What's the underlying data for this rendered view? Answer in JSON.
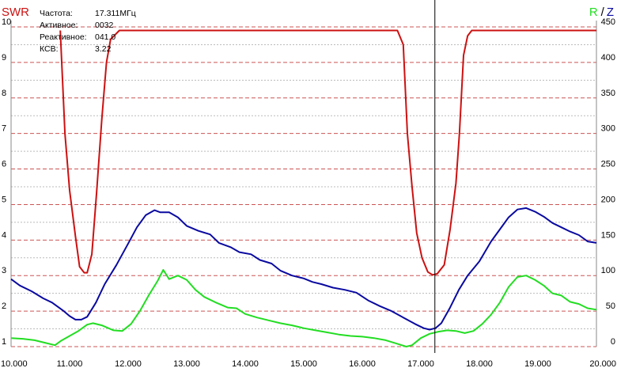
{
  "chart_data": {
    "type": "line",
    "title_left": "SWR",
    "title_right": {
      "r": "R",
      "slash": "/",
      "z": "Z"
    },
    "xlim": [
      10.0,
      20.0
    ],
    "x_ticks": [
      "10.000",
      "11.000",
      "12.000",
      "13.000",
      "14.000",
      "15.000",
      "16.000",
      "17.000",
      "18.000",
      "19.000",
      "20.000"
    ],
    "y_left": {
      "lim": [
        1,
        10
      ],
      "ticks": [
        "1",
        "2",
        "3",
        "4",
        "5",
        "6",
        "7",
        "8",
        "9",
        "10"
      ]
    },
    "y_right": {
      "lim": [
        0,
        450
      ],
      "ticks": [
        "0",
        "50",
        "100",
        "150",
        "200",
        "250",
        "300",
        "350",
        "400",
        "450"
      ]
    },
    "cursor_x": 17.24,
    "info": [
      {
        "label": "Частота:",
        "value": "17.311МГц"
      },
      {
        "label": "Активное:",
        "value": "0032"
      },
      {
        "label": "Реактивное:",
        "value": "041.0"
      },
      {
        "label": "КСВ:",
        "value": "3.22"
      }
    ],
    "colors": {
      "swr": "#cc1111",
      "z": "#0a0aa0",
      "r": "#22dd22",
      "grid": "#cc5555",
      "grid_minor": "#bbbbbb"
    },
    "series": [
      {
        "key": "swr",
        "axis": "left",
        "points": [
          [
            10.84,
            9.9
          ],
          [
            10.92,
            7.0
          ],
          [
            11.0,
            5.4
          ],
          [
            11.1,
            4.1
          ],
          [
            11.17,
            3.25
          ],
          [
            11.25,
            3.08
          ],
          [
            11.3,
            3.08
          ],
          [
            11.38,
            3.6
          ],
          [
            11.46,
            5.3
          ],
          [
            11.55,
            7.4
          ],
          [
            11.63,
            9.0
          ],
          [
            11.7,
            9.65
          ],
          [
            11.85,
            9.9
          ],
          [
            16.6,
            9.9
          ],
          [
            16.7,
            9.5
          ],
          [
            16.77,
            7.0
          ],
          [
            16.85,
            5.5
          ],
          [
            16.93,
            4.2
          ],
          [
            17.02,
            3.5
          ],
          [
            17.12,
            3.1
          ],
          [
            17.2,
            3.02
          ],
          [
            17.28,
            3.05
          ],
          [
            17.4,
            3.3
          ],
          [
            17.5,
            4.3
          ],
          [
            17.6,
            5.6
          ],
          [
            17.66,
            7.0
          ],
          [
            17.73,
            9.2
          ],
          [
            17.8,
            9.75
          ],
          [
            17.87,
            9.9
          ],
          [
            20.0,
            9.9
          ]
        ]
      },
      {
        "key": "z",
        "axis": "right",
        "points": [
          [
            10.0,
            95
          ],
          [
            10.15,
            86
          ],
          [
            10.35,
            78
          ],
          [
            10.55,
            68
          ],
          [
            10.7,
            62
          ],
          [
            10.8,
            56
          ],
          [
            10.9,
            50
          ],
          [
            11.0,
            43
          ],
          [
            11.1,
            38
          ],
          [
            11.2,
            38
          ],
          [
            11.3,
            42
          ],
          [
            11.45,
            62
          ],
          [
            11.6,
            88
          ],
          [
            11.8,
            115
          ],
          [
            12.0,
            145
          ],
          [
            12.15,
            168
          ],
          [
            12.3,
            185
          ],
          [
            12.45,
            192
          ],
          [
            12.55,
            189
          ],
          [
            12.7,
            189
          ],
          [
            12.85,
            182
          ],
          [
            13.0,
            170
          ],
          [
            13.2,
            163
          ],
          [
            13.4,
            158
          ],
          [
            13.55,
            146
          ],
          [
            13.75,
            140
          ],
          [
            13.9,
            133
          ],
          [
            14.1,
            130
          ],
          [
            14.25,
            122
          ],
          [
            14.45,
            117
          ],
          [
            14.6,
            107
          ],
          [
            14.8,
            100
          ],
          [
            15.0,
            96
          ],
          [
            15.15,
            91
          ],
          [
            15.3,
            88
          ],
          [
            15.5,
            83
          ],
          [
            15.7,
            80
          ],
          [
            15.9,
            76
          ],
          [
            16.1,
            65
          ],
          [
            16.3,
            57
          ],
          [
            16.5,
            50
          ],
          [
            16.7,
            41
          ],
          [
            16.9,
            32
          ],
          [
            17.05,
            26
          ],
          [
            17.15,
            24
          ],
          [
            17.25,
            26
          ],
          [
            17.35,
            33
          ],
          [
            17.5,
            55
          ],
          [
            17.65,
            80
          ],
          [
            17.8,
            100
          ],
          [
            18.0,
            120
          ],
          [
            18.2,
            148
          ],
          [
            18.35,
            165
          ],
          [
            18.5,
            182
          ],
          [
            18.65,
            193
          ],
          [
            18.8,
            195
          ],
          [
            18.95,
            190
          ],
          [
            19.1,
            183
          ],
          [
            19.25,
            174
          ],
          [
            19.4,
            168
          ],
          [
            19.55,
            162
          ],
          [
            19.7,
            157
          ],
          [
            19.85,
            148
          ],
          [
            20.0,
            146
          ]
        ]
      },
      {
        "key": "r",
        "axis": "right",
        "points": [
          [
            10.0,
            12
          ],
          [
            10.2,
            11
          ],
          [
            10.4,
            9
          ],
          [
            10.6,
            5
          ],
          [
            10.75,
            2
          ],
          [
            10.85,
            8
          ],
          [
            11.0,
            15
          ],
          [
            11.15,
            22
          ],
          [
            11.3,
            31
          ],
          [
            11.4,
            33
          ],
          [
            11.55,
            30
          ],
          [
            11.75,
            23
          ],
          [
            11.9,
            22
          ],
          [
            12.05,
            32
          ],
          [
            12.2,
            50
          ],
          [
            12.35,
            72
          ],
          [
            12.5,
            92
          ],
          [
            12.6,
            108
          ],
          [
            12.7,
            95
          ],
          [
            12.85,
            100
          ],
          [
            13.0,
            94
          ],
          [
            13.15,
            80
          ],
          [
            13.3,
            70
          ],
          [
            13.5,
            62
          ],
          [
            13.7,
            55
          ],
          [
            13.85,
            54
          ],
          [
            14.0,
            46
          ],
          [
            14.2,
            41
          ],
          [
            14.4,
            37
          ],
          [
            14.6,
            33
          ],
          [
            14.8,
            30
          ],
          [
            15.0,
            26
          ],
          [
            15.2,
            23
          ],
          [
            15.4,
            20
          ],
          [
            15.6,
            17
          ],
          [
            15.8,
            15
          ],
          [
            16.0,
            14
          ],
          [
            16.2,
            12
          ],
          [
            16.4,
            9
          ],
          [
            16.6,
            4
          ],
          [
            16.75,
            0
          ],
          [
            16.85,
            2
          ],
          [
            17.0,
            12
          ],
          [
            17.15,
            18
          ],
          [
            17.3,
            21
          ],
          [
            17.45,
            23
          ],
          [
            17.6,
            22
          ],
          [
            17.75,
            19
          ],
          [
            17.9,
            22
          ],
          [
            18.05,
            32
          ],
          [
            18.2,
            45
          ],
          [
            18.35,
            62
          ],
          [
            18.5,
            84
          ],
          [
            18.65,
            98
          ],
          [
            18.8,
            100
          ],
          [
            18.95,
            94
          ],
          [
            19.1,
            86
          ],
          [
            19.25,
            75
          ],
          [
            19.4,
            72
          ],
          [
            19.55,
            63
          ],
          [
            19.7,
            60
          ],
          [
            19.85,
            54
          ],
          [
            20.0,
            52
          ]
        ]
      }
    ]
  }
}
